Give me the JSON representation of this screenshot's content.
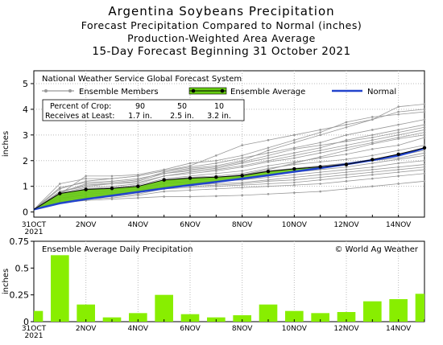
{
  "header": {
    "title": "Argentina Soybeans Precipitation",
    "line2": "Forecast Precipitation Compared to Normal (inches)",
    "line3": "Production-Weighted Area Average",
    "line4": "15-Day Forecast Beginning 31 October 2021"
  },
  "chart_data": [
    {
      "type": "line",
      "subtitle": "National Weather Service Global Forecast System",
      "ylabel": "inches",
      "ylim": [
        -0.2,
        5.5
      ],
      "yticks": [
        0,
        1,
        2,
        3,
        4,
        5
      ],
      "x": [
        0,
        1,
        2,
        3,
        4,
        5,
        6,
        7,
        8,
        9,
        10,
        11,
        12,
        13,
        14,
        15
      ],
      "x_tick_labels": [
        {
          "x": 0,
          "label": "31OCT",
          "sublabel": "2021"
        },
        {
          "x": 2,
          "label": "2NOV"
        },
        {
          "x": 4,
          "label": "4NOV"
        },
        {
          "x": 6,
          "label": "6NOV"
        },
        {
          "x": 8,
          "label": "8NOV"
        },
        {
          "x": 10,
          "label": "10NOV"
        },
        {
          "x": 12,
          "label": "12NOV"
        },
        {
          "x": 14,
          "label": "14NOV"
        }
      ],
      "legend": {
        "members_label": "Ensemble Members",
        "average_label": "Ensemble Average",
        "normal_label": "Normal"
      },
      "percent_table": {
        "row1_label": "Percent of Crop:",
        "row2_label": "Receives at Least:",
        "percents": [
          "90",
          "50",
          "10"
        ],
        "amounts": [
          "1.7 in.",
          "2.5 in.",
          "3.2 in."
        ]
      },
      "series": [
        {
          "name": "Ensemble Average",
          "color": "#000000",
          "values": [
            0.1,
            0.72,
            0.88,
            0.92,
            1.0,
            1.25,
            1.32,
            1.36,
            1.42,
            1.58,
            1.68,
            1.76,
            1.85,
            2.04,
            2.25,
            2.5
          ]
        },
        {
          "name": "Normal",
          "color": "#2244cc",
          "values": [
            0.1,
            0.34,
            0.5,
            0.64,
            0.78,
            0.92,
            1.05,
            1.17,
            1.3,
            1.43,
            1.57,
            1.71,
            1.86,
            2.02,
            2.2,
            2.48
          ]
        }
      ],
      "ensemble_members": [
        [
          0.1,
          0.75,
          1.1,
          1.15,
          1.25,
          1.55,
          1.7,
          1.8,
          2.0,
          2.4,
          2.7,
          3.0,
          3.3,
          3.6,
          4.1,
          4.2
        ],
        [
          0.1,
          0.7,
          1.4,
          1.4,
          1.45,
          1.65,
          1.9,
          2.0,
          2.2,
          2.5,
          2.8,
          3.1,
          3.5,
          3.7,
          3.8,
          3.9
        ],
        [
          0.1,
          1.1,
          1.3,
          1.3,
          1.4,
          1.6,
          1.8,
          2.2,
          2.6,
          2.8,
          3.0,
          3.2,
          3.4,
          3.6,
          3.9,
          4.0
        ],
        [
          0.1,
          0.9,
          1.2,
          1.3,
          1.4,
          1.6,
          1.75,
          1.9,
          2.1,
          2.3,
          2.5,
          2.7,
          3.0,
          3.2,
          3.4,
          3.6
        ],
        [
          0.1,
          0.8,
          1.0,
          1.1,
          1.2,
          1.5,
          1.6,
          1.7,
          1.9,
          2.1,
          2.3,
          2.5,
          2.8,
          3.0,
          3.2,
          3.4
        ],
        [
          0.1,
          0.75,
          0.95,
          1.0,
          1.1,
          1.4,
          1.5,
          1.6,
          1.75,
          1.95,
          2.1,
          2.3,
          2.5,
          2.7,
          2.9,
          3.1
        ],
        [
          0.1,
          0.7,
          0.9,
          0.95,
          1.05,
          1.3,
          1.4,
          1.5,
          1.6,
          1.8,
          1.95,
          2.1,
          2.25,
          2.45,
          2.6,
          2.9
        ],
        [
          0.1,
          0.7,
          0.85,
          0.9,
          1.0,
          1.25,
          1.35,
          1.4,
          1.5,
          1.7,
          1.85,
          1.95,
          2.05,
          2.2,
          2.4,
          2.6
        ],
        [
          0.1,
          0.65,
          0.8,
          0.85,
          0.95,
          1.2,
          1.3,
          1.35,
          1.45,
          1.6,
          1.7,
          1.8,
          1.9,
          2.05,
          2.2,
          2.4
        ],
        [
          0.1,
          0.6,
          0.75,
          0.8,
          0.9,
          1.15,
          1.25,
          1.3,
          1.35,
          1.45,
          1.55,
          1.65,
          1.75,
          1.9,
          2.05,
          2.2
        ],
        [
          0.1,
          0.55,
          0.7,
          0.75,
          0.85,
          1.1,
          1.15,
          1.2,
          1.25,
          1.35,
          1.45,
          1.55,
          1.65,
          1.75,
          1.9,
          2.0
        ],
        [
          0.1,
          0.55,
          0.65,
          0.7,
          0.8,
          1.0,
          1.05,
          1.1,
          1.15,
          1.25,
          1.35,
          1.45,
          1.55,
          1.65,
          1.75,
          1.85
        ],
        [
          0.1,
          0.5,
          0.6,
          0.65,
          0.75,
          0.95,
          1.0,
          1.05,
          1.1,
          1.2,
          1.25,
          1.35,
          1.45,
          1.55,
          1.65,
          1.75
        ],
        [
          0.1,
          0.45,
          0.55,
          0.6,
          0.7,
          0.9,
          0.95,
          1.0,
          1.05,
          1.1,
          1.15,
          1.25,
          1.35,
          1.45,
          1.55,
          1.65
        ],
        [
          0.1,
          0.4,
          0.5,
          0.55,
          0.65,
          0.8,
          0.85,
          0.9,
          0.95,
          1.0,
          1.05,
          1.1,
          1.2,
          1.3,
          1.4,
          1.5
        ],
        [
          0.1,
          0.35,
          0.45,
          0.5,
          0.55,
          0.6,
          0.6,
          0.62,
          0.65,
          0.7,
          0.75,
          0.8,
          0.9,
          1.0,
          1.1,
          1.2
        ],
        [
          0.1,
          0.6,
          0.8,
          0.85,
          0.95,
          1.1,
          1.2,
          1.3,
          1.45,
          1.65,
          1.9,
          2.15,
          2.4,
          2.65,
          2.85,
          3.0
        ],
        [
          0.1,
          0.8,
          1.05,
          1.1,
          1.15,
          1.4,
          1.55,
          1.65,
          1.8,
          2.0,
          2.2,
          2.4,
          2.6,
          2.8,
          3.0,
          3.2
        ],
        [
          0.1,
          0.5,
          0.7,
          0.75,
          0.85,
          1.0,
          1.1,
          1.2,
          1.3,
          1.45,
          1.6,
          1.75,
          1.9,
          2.0,
          2.1,
          2.3
        ],
        [
          0.1,
          0.95,
          1.15,
          1.2,
          1.3,
          1.5,
          1.65,
          1.75,
          1.95,
          2.2,
          2.45,
          2.6,
          2.75,
          2.9,
          3.1,
          3.3
        ]
      ],
      "colors": {
        "members": "#999999",
        "fill": "#66cc11",
        "average": "#000000",
        "normal": "#2244cc"
      }
    },
    {
      "type": "bar",
      "title": "Ensemble Average Daily Precipitation",
      "watermark": "© World Ag Weather",
      "ylabel": "inches",
      "ylim": [
        0,
        0.75
      ],
      "yticks": [
        0,
        0.25,
        0.5,
        0.75
      ],
      "ytick_labels": [
        "0",
        "0.25",
        "0.5",
        "0.75"
      ],
      "x": [
        0,
        1,
        2,
        3,
        4,
        5,
        6,
        7,
        8,
        9,
        10,
        11,
        12,
        13,
        14,
        15
      ],
      "values": [
        0.1,
        0.62,
        0.16,
        0.04,
        0.08,
        0.25,
        0.07,
        0.04,
        0.06,
        0.16,
        0.1,
        0.08,
        0.09,
        0.19,
        0.21,
        0.26
      ],
      "x_tick_labels": [
        {
          "x": 0,
          "label": "31OCT",
          "sublabel": "2021"
        },
        {
          "x": 2,
          "label": "2NOV"
        },
        {
          "x": 4,
          "label": "4NOV"
        },
        {
          "x": 6,
          "label": "6NOV"
        },
        {
          "x": 8,
          "label": "8NOV"
        },
        {
          "x": 10,
          "label": "10NOV"
        },
        {
          "x": 12,
          "label": "12NOV"
        },
        {
          "x": 14,
          "label": "14NOV"
        }
      ],
      "colors": {
        "bars": "#88ee00"
      }
    }
  ]
}
